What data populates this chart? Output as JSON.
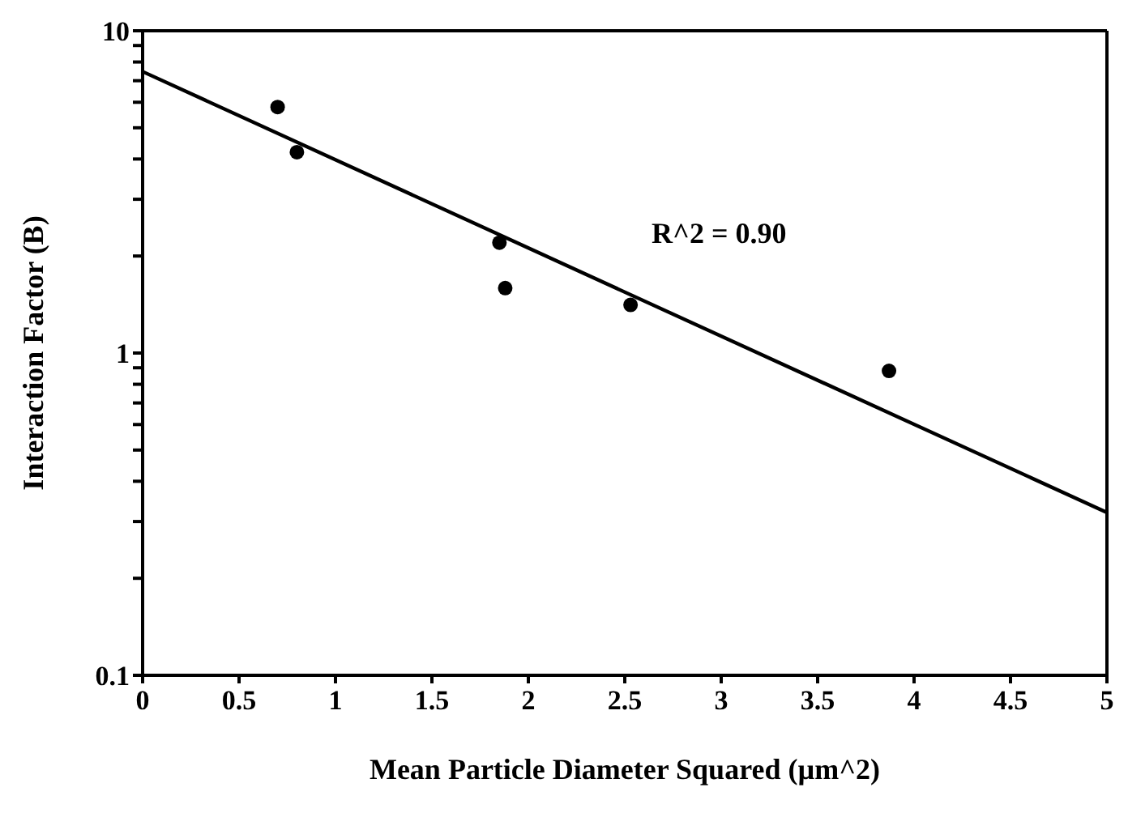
{
  "chart_data": {
    "type": "scatter",
    "xlabel": "Mean Particle Diameter Squared (µm^2)",
    "ylabel": "Interaction Factor (B)",
    "annotations": [
      "R^2 = 0.90"
    ],
    "x": [
      0.7,
      0.8,
      1.85,
      1.88,
      2.53,
      3.87
    ],
    "series": [
      {
        "color": "#000000",
        "values": [
          5.8,
          4.2,
          2.2,
          1.59,
          1.41,
          0.88
        ]
      },
      {
        "type": "line",
        "color": "#000000",
        "marker": "none",
        "x": [
          0,
          5
        ],
        "values": [
          7.47,
          0.32
        ]
      }
    ],
    "log": "y",
    "marker": "circle",
    "xlim": [
      0,
      5
    ],
    "xticks": [
      0,
      0.5,
      1,
      1.5,
      2,
      2.5,
      3,
      3.5,
      4,
      4.5,
      5
    ],
    "ylim": [
      0.1,
      10
    ],
    "yticks": [
      0.1,
      {
        "value": 0.2,
        "label": null
      },
      {
        "value": 0.3,
        "label": null
      },
      {
        "value": 0.4,
        "label": null
      },
      {
        "value": 0.5,
        "label": null
      },
      {
        "value": 0.6,
        "label": null
      },
      {
        "value": 0.7,
        "label": null
      },
      {
        "value": 0.8,
        "label": null
      },
      {
        "value": 0.9,
        "label": null
      },
      1,
      {
        "value": 2,
        "label": null
      },
      {
        "value": 3,
        "label": null
      },
      {
        "value": 4,
        "label": null
      },
      {
        "value": 5,
        "label": null
      },
      {
        "value": 6,
        "label": null
      },
      {
        "value": 7,
        "label": null
      },
      {
        "value": 8,
        "label": null
      },
      {
        "value": 9,
        "label": null
      },
      10
    ],
    "tick_labels": true
  }
}
